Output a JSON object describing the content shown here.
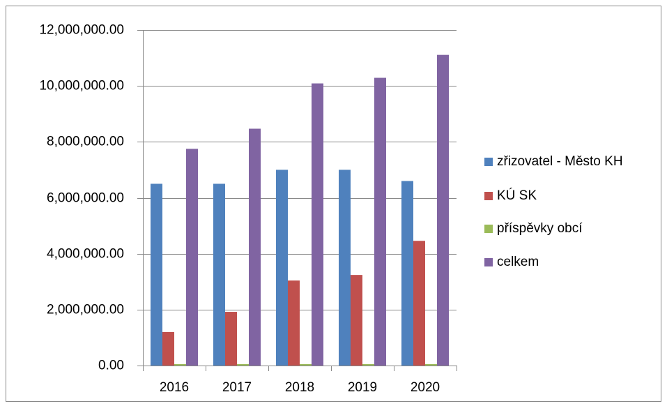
{
  "chart_data": {
    "type": "bar",
    "categories": [
      "2016",
      "2017",
      "2018",
      "2019",
      "2020"
    ],
    "series": [
      {
        "name": "zřizovatel - Město KH",
        "color": "#4f81bd",
        "values": [
          6500000,
          6500000,
          7000000,
          7000000,
          6600000
        ]
      },
      {
        "name": "KÚ SK",
        "color": "#c0504d",
        "values": [
          1200000,
          1920000,
          3040000,
          3240000,
          4460000
        ]
      },
      {
        "name": "příspěvky obcí",
        "color": "#9bbb59",
        "values": [
          50000,
          50000,
          50000,
          50000,
          50000
        ]
      },
      {
        "name": "celkem",
        "color": "#8064a2",
        "values": [
          7750000,
          8470000,
          10090000,
          10290000,
          11110000
        ]
      }
    ],
    "ylim": [
      0,
      12000000
    ],
    "yticks": [
      {
        "value": 0,
        "label": "0.00"
      },
      {
        "value": 2000000,
        "label": "2,000,000.00"
      },
      {
        "value": 4000000,
        "label": "4,000,000.00"
      },
      {
        "value": 6000000,
        "label": "6,000,000.00"
      },
      {
        "value": 8000000,
        "label": "8,000,000.00"
      },
      {
        "value": 10000000,
        "label": "10,000,000.00"
      },
      {
        "value": 12000000,
        "label": "12,000,000.00"
      }
    ],
    "grid": true,
    "legend": "right"
  }
}
